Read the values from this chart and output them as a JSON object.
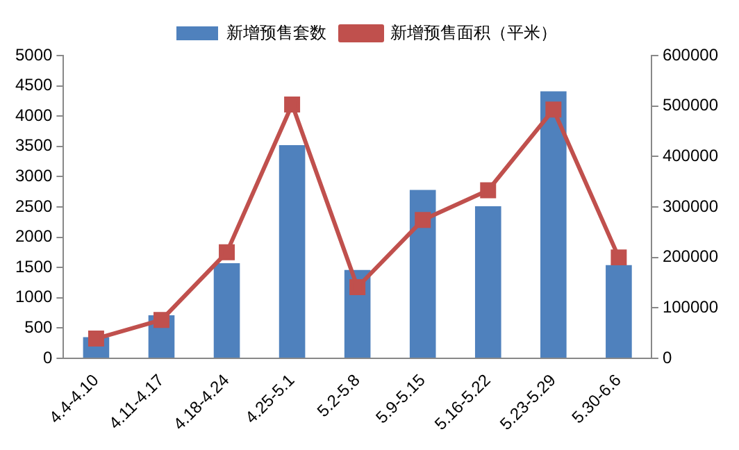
{
  "chart_data": {
    "type": "bar",
    "categories": [
      "4.4-4.10",
      "4.11-4.17",
      "4.18-4.24",
      "4.25-5.1",
      "5.2-5.8",
      "5.9-5.15",
      "5.16-5.22",
      "5.23-5.29",
      "5.30-6.6"
    ],
    "series": [
      {
        "name": "新增预售套数",
        "color": "#4f81bd",
        "values": [
          350,
          710,
          1570,
          3520,
          1460,
          2780,
          2510,
          4410,
          1540
        ]
      },
      {
        "name": "新增预售面积（平米）",
        "type": "line",
        "axis": "y2",
        "color": "#c0504d",
        "marker": "square",
        "values": [
          39000,
          76000,
          210000,
          503000,
          141000,
          274000,
          333000,
          493000,
          200000
        ]
      }
    ],
    "ylim": [
      0,
      5000
    ],
    "yticks": [
      0,
      500,
      1000,
      1500,
      2000,
      2500,
      3000,
      3500,
      4000,
      4500,
      5000
    ],
    "y2lim": [
      0,
      600000
    ],
    "y2ticks": [
      0,
      100000,
      200000,
      300000,
      400000,
      500000,
      600000
    ],
    "grid": false,
    "legend": "top"
  }
}
